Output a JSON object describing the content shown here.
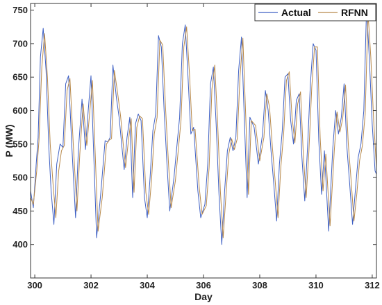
{
  "chart_data": {
    "type": "line",
    "title": "",
    "xlabel": "Day",
    "ylabel": "P (MW)",
    "xlim": [
      299.85,
      312.15
    ],
    "ylim": [
      350,
      760
    ],
    "xticks": [
      300,
      302,
      304,
      306,
      308,
      310,
      312
    ],
    "yticks": [
      400,
      450,
      500,
      550,
      600,
      650,
      700,
      750
    ],
    "grid": false,
    "legend": "top-right",
    "colors": {
      "actual": "#3d5fc4",
      "rfnn": "#b8894a",
      "axis": "#333333"
    },
    "series": [
      {
        "name": "Actual",
        "x": [
          299.85,
          299.95,
          300.05,
          300.12,
          300.2,
          300.3,
          300.4,
          300.5,
          300.58,
          300.68,
          300.78,
          300.9,
          301.0,
          301.1,
          301.2,
          301.32,
          301.45,
          301.55,
          301.68,
          301.8,
          301.9,
          302.0,
          302.1,
          302.2,
          302.35,
          302.5,
          302.6,
          302.68,
          302.78,
          302.9,
          303.0,
          303.1,
          303.18,
          303.28,
          303.38,
          303.48,
          303.58,
          303.68,
          303.78,
          303.9,
          304.0,
          304.1,
          304.2,
          304.3,
          304.4,
          304.5,
          304.6,
          304.7,
          304.8,
          304.95,
          305.05,
          305.15,
          305.25,
          305.35,
          305.45,
          305.55,
          305.65,
          305.8,
          305.9,
          306.05,
          306.15,
          306.25,
          306.35,
          306.45,
          306.55,
          306.65,
          306.75,
          306.85,
          306.95,
          307.05,
          307.15,
          307.25,
          307.35,
          307.45,
          307.55,
          307.65,
          307.8,
          307.95,
          308.1,
          308.2,
          308.3,
          308.4,
          308.5,
          308.6,
          308.7,
          308.8,
          308.9,
          309.0,
          309.1,
          309.2,
          309.3,
          309.4,
          309.5,
          309.6,
          309.7,
          309.8,
          309.9,
          310.0,
          310.1,
          310.2,
          310.3,
          310.45,
          310.6,
          310.7,
          310.8,
          310.9,
          311.0,
          311.1,
          311.2,
          311.3,
          311.4,
          311.5,
          311.6,
          311.7,
          311.8,
          311.9,
          312.0,
          312.1,
          312.15
        ],
        "y": [
          480,
          455,
          520,
          560,
          680,
          723,
          660,
          545,
          480,
          430,
          520,
          550,
          545,
          640,
          652,
          545,
          440,
          540,
          617,
          542,
          600,
          652,
          530,
          410,
          478,
          555,
          553,
          560,
          668,
          620,
          590,
          545,
          512,
          560,
          590,
          470,
          580,
          595,
          585,
          470,
          440,
          500,
          570,
          595,
          712,
          695,
          600,
          520,
          450,
          500,
          545,
          590,
          700,
          728,
          650,
          565,
          575,
          480,
          440,
          460,
          520,
          640,
          665,
          580,
          475,
          400,
          480,
          540,
          560,
          540,
          560,
          660,
          710,
          590,
          470,
          590,
          575,
          520,
          565,
          630,
          600,
          540,
          490,
          435,
          520,
          570,
          650,
          655,
          585,
          550,
          615,
          625,
          530,
          465,
          545,
          640,
          700,
          690,
          555,
          475,
          540,
          420,
          545,
          600,
          565,
          590,
          640,
          545,
          490,
          430,
          480,
          530,
          550,
          600,
          755,
          675,
          580,
          510,
          505
        ]
      },
      {
        "name": "RFNN",
        "x": [
          299.85,
          299.95,
          300.07,
          300.15,
          300.25,
          300.35,
          300.45,
          300.55,
          300.65,
          300.75,
          300.85,
          300.95,
          301.05,
          301.15,
          301.25,
          301.37,
          301.5,
          301.6,
          301.72,
          301.85,
          301.95,
          302.05,
          302.15,
          302.25,
          302.4,
          302.55,
          302.65,
          302.73,
          302.83,
          302.95,
          303.05,
          303.15,
          303.23,
          303.33,
          303.43,
          303.53,
          303.63,
          303.73,
          303.83,
          303.95,
          304.05,
          304.15,
          304.25,
          304.35,
          304.45,
          304.55,
          304.65,
          304.75,
          304.85,
          305.0,
          305.1,
          305.2,
          305.3,
          305.4,
          305.5,
          305.6,
          305.7,
          305.85,
          305.95,
          306.1,
          306.2,
          306.3,
          306.4,
          306.5,
          306.6,
          306.7,
          306.8,
          306.9,
          307.0,
          307.1,
          307.2,
          307.3,
          307.4,
          307.5,
          307.6,
          307.7,
          307.85,
          308.0,
          308.15,
          308.25,
          308.35,
          308.45,
          308.55,
          308.65,
          308.75,
          308.85,
          308.95,
          309.05,
          309.15,
          309.25,
          309.35,
          309.45,
          309.55,
          309.65,
          309.75,
          309.85,
          309.95,
          310.05,
          310.15,
          310.25,
          310.35,
          310.5,
          310.65,
          310.75,
          310.85,
          310.95,
          311.05,
          311.15,
          311.25,
          311.35,
          311.45,
          311.55,
          311.65,
          311.75,
          311.85,
          311.95,
          312.05,
          312.15
        ],
        "y": [
          470,
          460,
          510,
          555,
          665,
          715,
          650,
          550,
          490,
          440,
          510,
          540,
          548,
          630,
          648,
          550,
          450,
          535,
          610,
          548,
          595,
          645,
          535,
          420,
          470,
          550,
          556,
          558,
          660,
          625,
          592,
          548,
          515,
          555,
          588,
          478,
          575,
          592,
          588,
          478,
          445,
          495,
          565,
          590,
          705,
          698,
          605,
          525,
          455,
          495,
          540,
          585,
          695,
          725,
          655,
          570,
          572,
          485,
          445,
          458,
          515,
          632,
          668,
          585,
          480,
          410,
          475,
          535,
          558,
          542,
          558,
          652,
          708,
          595,
          475,
          585,
          578,
          525,
          560,
          625,
          605,
          545,
          495,
          440,
          515,
          565,
          645,
          658,
          590,
          552,
          610,
          628,
          535,
          470,
          540,
          635,
          695,
          695,
          560,
          480,
          535,
          428,
          540,
          598,
          568,
          588,
          638,
          550,
          495,
          435,
          475,
          525,
          548,
          595,
          745,
          680,
          585,
          515
        ]
      }
    ]
  }
}
